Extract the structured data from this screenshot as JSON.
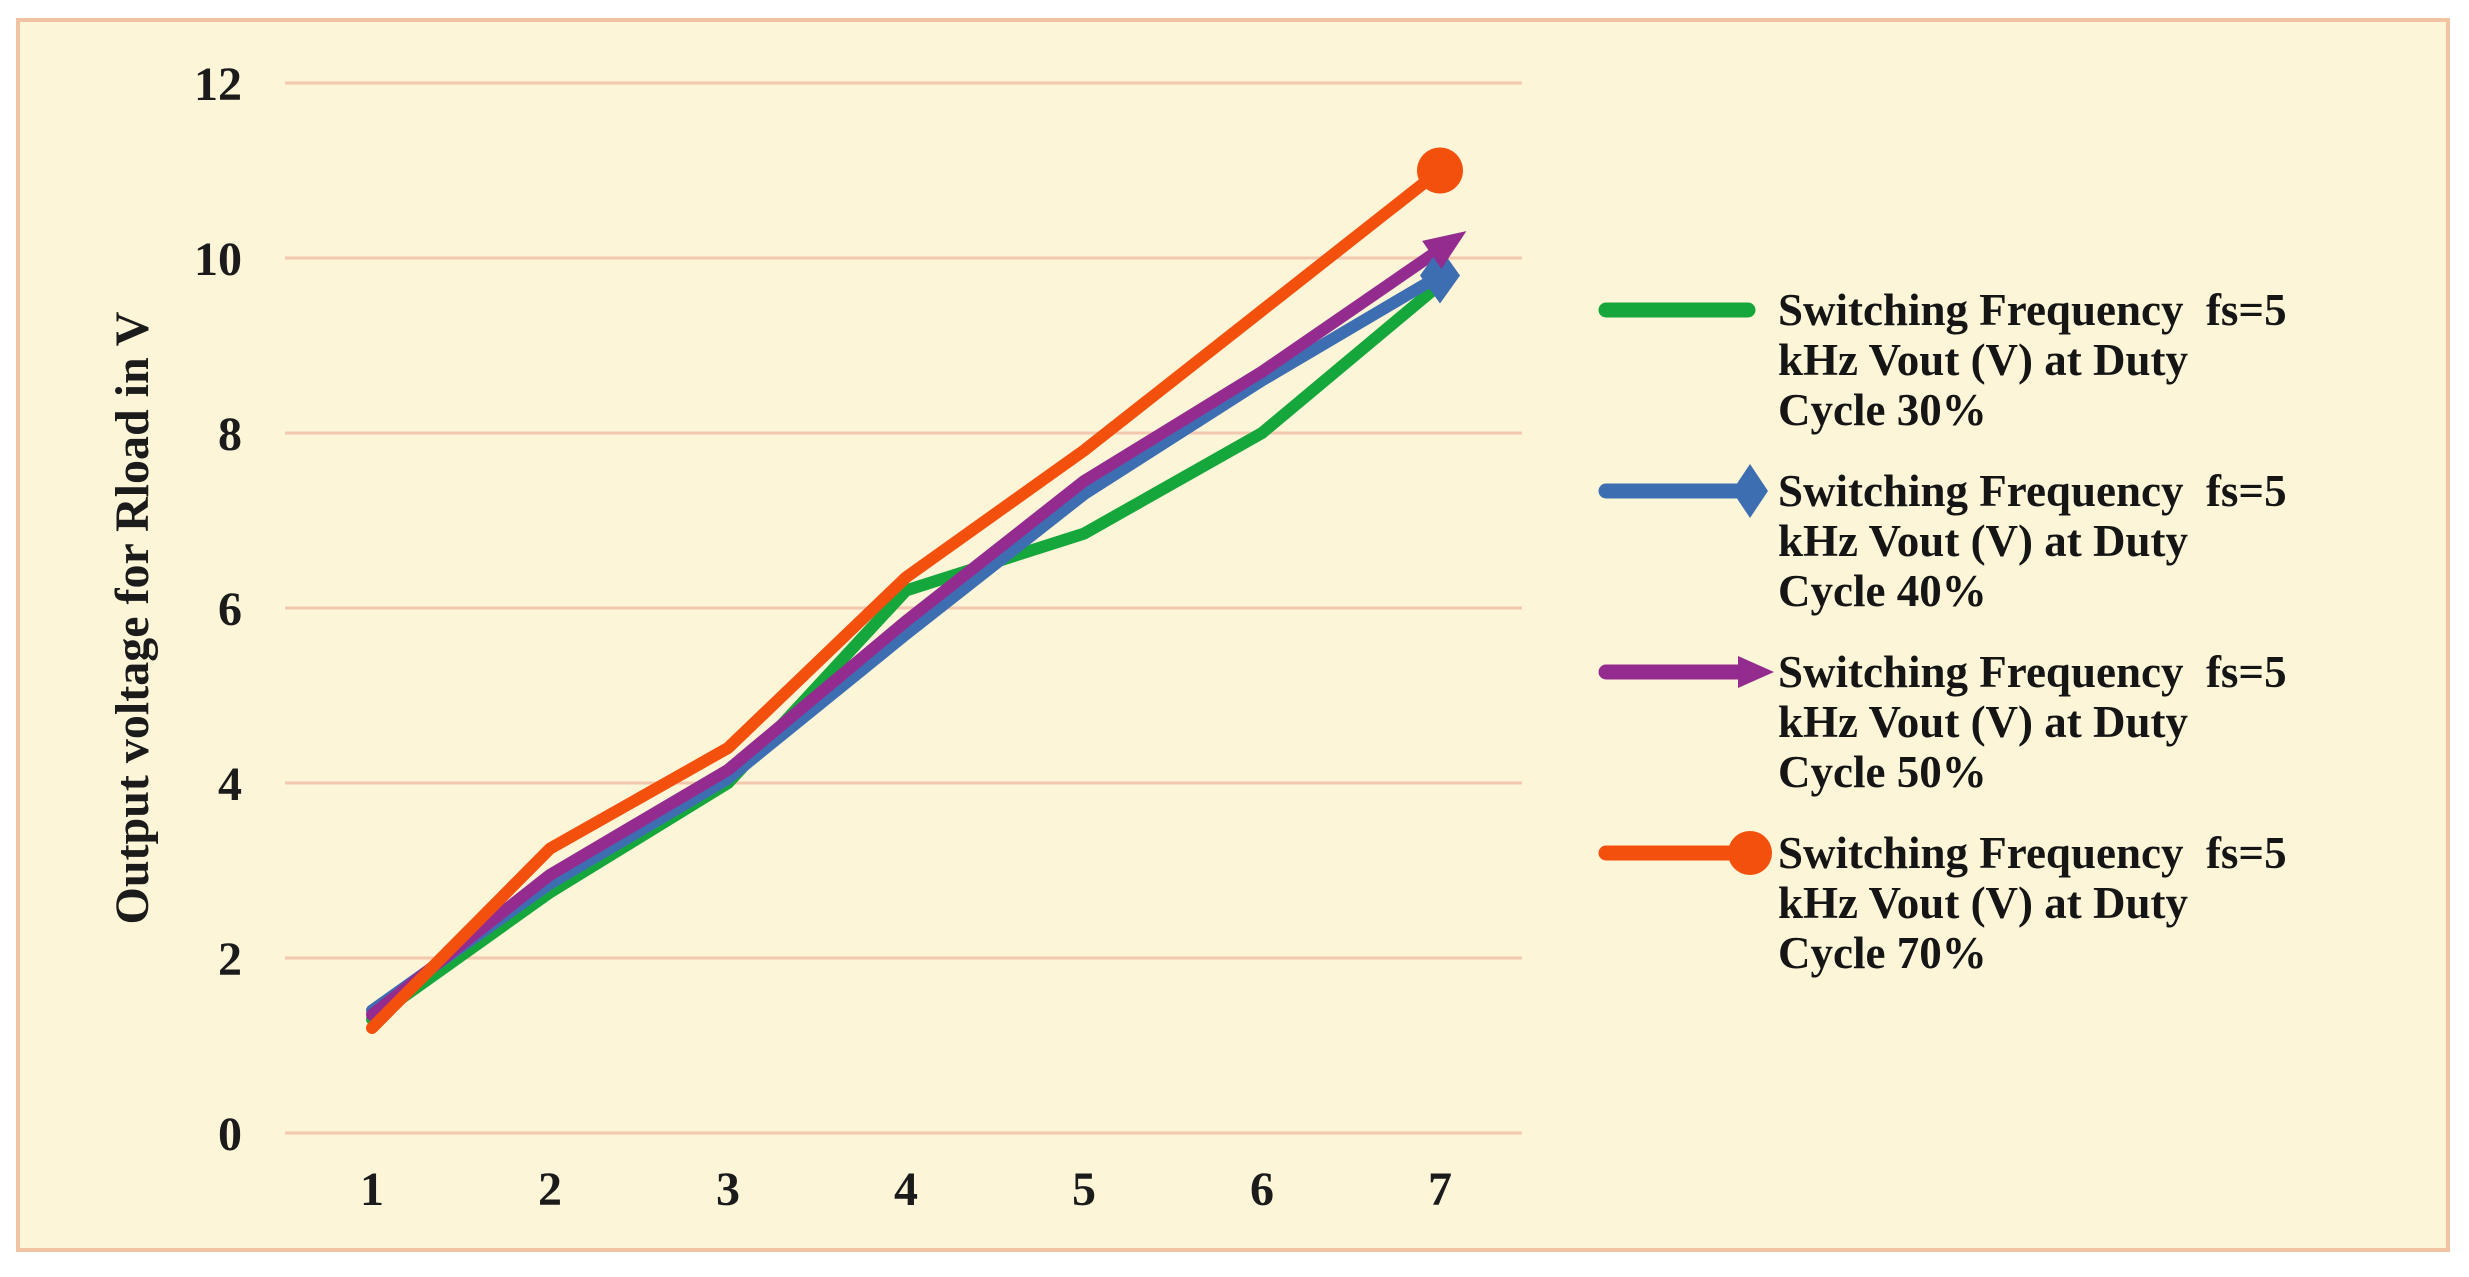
{
  "page": {
    "background": "#ffffff"
  },
  "panel": {
    "background": "#FCF5D8",
    "border_color": "#F2C3A3"
  },
  "axes": {
    "y_title": "Output voltage for Rload in V",
    "y_tick_labels": [
      "0",
      "2",
      "4",
      "6",
      "8",
      "10",
      "12"
    ],
    "x_tick_labels": [
      "1",
      "2",
      "3",
      "4",
      "5",
      "6",
      "7"
    ],
    "grid_color": "#F4C8AE",
    "text_color": "#1b1b1b"
  },
  "chart_data": {
    "type": "line",
    "title": "",
    "xlabel": "",
    "ylabel": "Output voltage for Rload in V",
    "x": [
      1,
      2,
      3,
      4,
      5,
      6,
      7
    ],
    "ylim": [
      0,
      12
    ],
    "yticks": [
      0,
      2,
      4,
      6,
      8,
      10,
      12
    ],
    "grid": "horizontal",
    "legend_position": "right",
    "markers_on": "last_point_only",
    "series": [
      {
        "name": "Switching Frequency  fs=5 kHz Vout (V) at Duty Cycle 30%",
        "duty_cycle": "30%",
        "color": "#16A73C",
        "marker": "none",
        "values": [
          1.3,
          2.75,
          4.0,
          6.2,
          6.85,
          8.0,
          9.7
        ]
      },
      {
        "name": "Switching Frequency  fs=5 kHz Vout (V) at Duty Cycle 40%",
        "duty_cycle": "40%",
        "color": "#3E6EB2",
        "marker": "diamond",
        "values": [
          1.4,
          2.85,
          4.05,
          5.7,
          7.3,
          8.6,
          9.8
        ]
      },
      {
        "name": "Switching Frequency  fs=5 kHz Vout (V) at Duty Cycle 50%",
        "duty_cycle": "50%",
        "color": "#942C90",
        "marker": "arrow",
        "values": [
          1.35,
          2.95,
          4.15,
          5.85,
          7.45,
          8.7,
          10.1
        ]
      },
      {
        "name": "Switching Frequency  fs=5 kHz Vout (V) at Duty Cycle 70%",
        "duty_cycle": "70%",
        "color": "#F4500D",
        "marker": "circle",
        "values": [
          1.2,
          3.25,
          4.4,
          6.35,
          7.8,
          9.4,
          11.0
        ]
      }
    ]
  },
  "legend": {
    "items": [
      {
        "lines": [
          "Switching Frequency  fs=5",
          "kHz Vout (V) at Duty",
          "Cycle 30%"
        ]
      },
      {
        "lines": [
          "Switching Frequency  fs=5",
          "kHz Vout (V) at Duty",
          "Cycle 40%"
        ]
      },
      {
        "lines": [
          "Switching Frequency  fs=5",
          "kHz Vout (V) at Duty",
          "Cycle 50%"
        ]
      },
      {
        "lines": [
          "Switching Frequency  fs=5",
          "kHz Vout (V) at Duty",
          "Cycle 70%"
        ]
      }
    ]
  }
}
